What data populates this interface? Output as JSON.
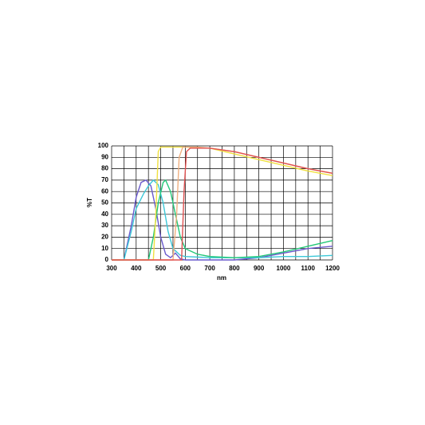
{
  "chart_data": {
    "type": "line",
    "xlabel": "nm",
    "ylabel": "%T",
    "xlim": [
      300,
      1200
    ],
    "ylim": [
      0,
      100
    ],
    "xticks": [
      300,
      400,
      500,
      600,
      700,
      800,
      900,
      1000,
      1100,
      1200
    ],
    "x_minor_ticks": [
      350,
      450,
      550,
      650,
      750,
      850,
      950,
      1050,
      1150
    ],
    "yticks": [
      0,
      10,
      20,
      30,
      40,
      50,
      60,
      70,
      80,
      90,
      100
    ],
    "grid": true,
    "series": [
      {
        "color": "#6a5acd",
        "x": [
          300,
          350,
          380,
          400,
          420,
          440,
          460,
          480,
          500,
          520,
          540,
          560,
          580,
          600,
          700,
          800,
          900,
          1000,
          1100,
          1200
        ],
        "values": [
          0,
          0,
          30,
          55,
          68,
          70,
          65,
          45,
          20,
          5,
          2,
          6,
          1,
          0,
          0,
          0,
          2,
          6,
          10,
          12
        ]
      },
      {
        "color": "#3cc8d8",
        "x": [
          300,
          350,
          380,
          400,
          430,
          450,
          470,
          490,
          510,
          530,
          550,
          580,
          600,
          700,
          800,
          900,
          1000,
          1100,
          1200
        ],
        "values": [
          0,
          0,
          25,
          45,
          58,
          65,
          70,
          66,
          50,
          25,
          10,
          4,
          3,
          2,
          2,
          2,
          3,
          3,
          4
        ]
      },
      {
        "color": "#22c878",
        "x": [
          300,
          450,
          470,
          490,
          510,
          520,
          540,
          560,
          580,
          600,
          650,
          700,
          800,
          900,
          1000,
          1100,
          1200
        ],
        "values": [
          0,
          0,
          20,
          50,
          68,
          70,
          60,
          40,
          20,
          10,
          5,
          3,
          2,
          3,
          7,
          12,
          17
        ]
      },
      {
        "color": "#f0e040",
        "x": [
          300,
          470,
          480,
          490,
          500,
          600,
          700,
          800,
          900,
          1000,
          1100,
          1200
        ],
        "values": [
          0,
          0,
          40,
          95,
          99,
          99,
          98,
          93,
          88,
          83,
          78,
          74
        ]
      },
      {
        "color": "#f0b080",
        "x": [
          300,
          550,
          565,
          575,
          590,
          650,
          700,
          800,
          900,
          1000,
          1100,
          1200
        ],
        "values": [
          0,
          0,
          40,
          90,
          99,
          99,
          98,
          95,
          90,
          85,
          80,
          76
        ]
      },
      {
        "color": "#e05050",
        "x": [
          300,
          585,
          595,
          605,
          620,
          700,
          800,
          900,
          1000,
          1100,
          1200
        ],
        "values": [
          0,
          0,
          60,
          95,
          98,
          98,
          95,
          90,
          85,
          80,
          76
        ]
      }
    ]
  }
}
